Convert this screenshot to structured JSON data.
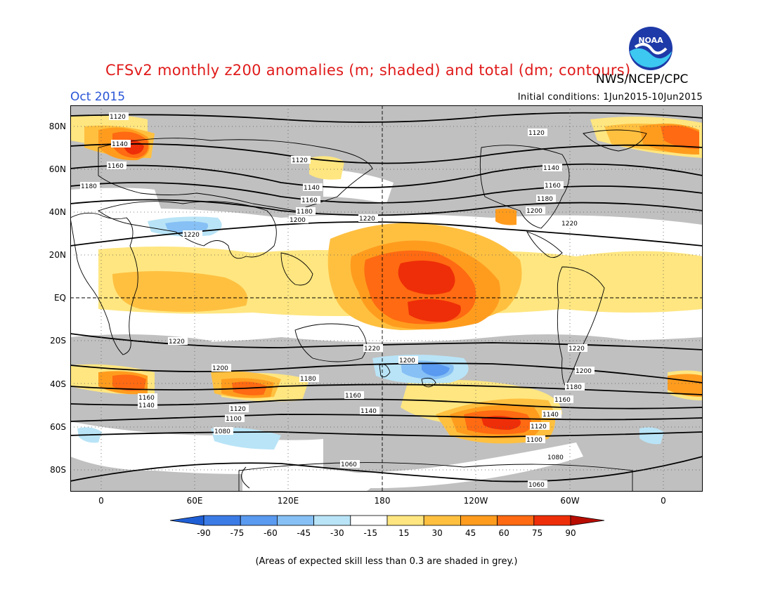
{
  "title": "CFSv2 monthly z200 anomalies (m; shaded) and total (dm; contours)",
  "month": "Oct 2015",
  "agency": "NWS/NCEP/CPC",
  "initial_conditions": "Initial conditions: 1Jun2015-10Jun2015",
  "logo_text": "NOAA",
  "lat_labels": [
    "80N",
    "60N",
    "40N",
    "20N",
    "EQ",
    "20S",
    "40S",
    "60S",
    "80S"
  ],
  "lon_labels": [
    "0",
    "60E",
    "120E",
    "180",
    "120W",
    "60W",
    "0"
  ],
  "colorbar": {
    "ticks": [
      "-90",
      "-75",
      "-60",
      "-45",
      "-30",
      "-15",
      "15",
      "30",
      "45",
      "60",
      "75",
      "90"
    ],
    "colors": [
      "#1f5fd6",
      "#3b7be6",
      "#5a9af0",
      "#86c0f5",
      "#b9e4f7",
      "#ffffff",
      "#ffe680",
      "#ffc040",
      "#ff9c1e",
      "#ff6a12",
      "#ee2e08",
      "#b80c00"
    ]
  },
  "contour_labels": [
    "1120",
    "1140",
    "1160",
    "1180",
    "1200",
    "1220",
    "1080",
    "1060",
    "1100"
  ],
  "colors": {
    "grey": "#c0c0c0",
    "title": "#e01b1b",
    "month": "#2a55d6"
  },
  "footnote": "(Areas of expected skill less than 0.3 are shaded in grey.)"
}
